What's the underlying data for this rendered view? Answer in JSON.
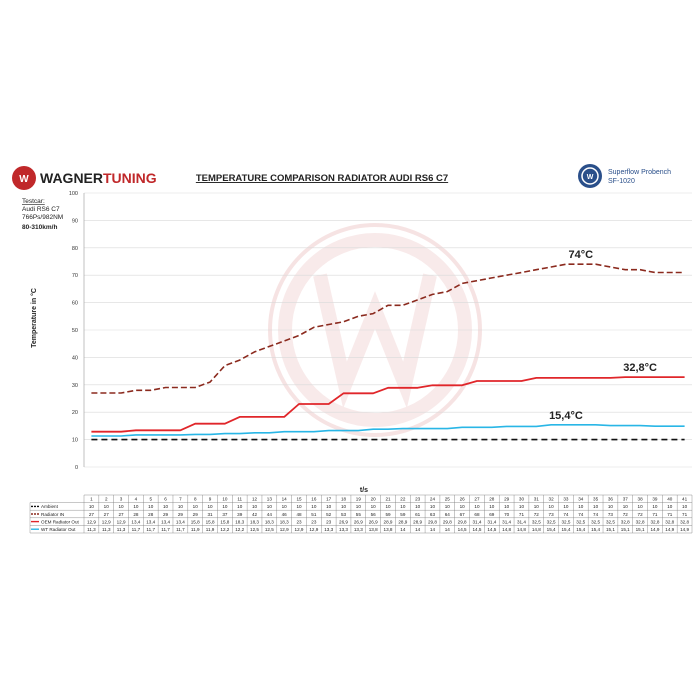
{
  "header": {
    "brand_part1": "WAGNER",
    "brand_part2": "TUNING",
    "title": "TEMPERATURE COMPARISON RADIATOR AUDI RS6 C7",
    "bench_line1": "Superflow Probench",
    "bench_line2": "SF-1020"
  },
  "testcar": {
    "label": "Testcar:",
    "model": "Audi RS6 C7",
    "power": "766Ps/982NM",
    "speed": "80-310km/h"
  },
  "chart_data": {
    "type": "line",
    "ylabel": "Temperature in °C",
    "xlabel": "t/s",
    "ylim": [
      0,
      100
    ],
    "yticks": [
      0,
      10,
      20,
      30,
      40,
      50,
      60,
      70,
      80,
      90,
      100
    ],
    "x": [
      1,
      2,
      3,
      4,
      5,
      6,
      7,
      8,
      9,
      10,
      11,
      12,
      13,
      14,
      15,
      16,
      17,
      18,
      19,
      20,
      21,
      22,
      23,
      24,
      25,
      26,
      27,
      28,
      29,
      30,
      31,
      32,
      33,
      34,
      35,
      36,
      37,
      38,
      39,
      40,
      41
    ],
    "series": [
      {
        "name": "Ambient",
        "color": "#111111",
        "style": "dashed",
        "values": [
          10,
          10,
          10,
          10,
          10,
          10,
          10,
          10,
          10,
          10,
          10,
          10,
          10,
          10,
          10,
          10,
          10,
          10,
          10,
          10,
          10,
          10,
          10,
          10,
          10,
          10,
          10,
          10,
          10,
          10,
          10,
          10,
          10,
          10,
          10,
          10,
          10,
          10,
          10,
          10,
          10
        ],
        "labels": [
          "10",
          "10",
          "10",
          "10",
          "10",
          "10",
          "10",
          "10",
          "10",
          "10",
          "10",
          "10",
          "10",
          "10",
          "10",
          "10",
          "10",
          "10",
          "10",
          "10",
          "10",
          "10",
          "10",
          "10",
          "10",
          "10",
          "10",
          "10",
          "10",
          "10",
          "10",
          "10",
          "10",
          "10",
          "10",
          "10",
          "10",
          "10",
          "10",
          "10",
          "10"
        ]
      },
      {
        "name": "Radiator IN",
        "color": "#8b2a1e",
        "style": "dashed",
        "values": [
          27,
          27,
          27,
          28,
          28,
          29,
          29,
          29,
          31,
          37,
          39,
          42,
          44,
          46,
          48,
          51,
          52,
          53,
          55,
          56,
          59,
          59,
          61,
          63,
          64,
          67,
          68,
          69,
          70,
          71,
          72,
          73,
          74,
          74,
          74,
          73,
          72,
          72,
          71,
          71,
          71
        ],
        "labels": [
          "27",
          "27",
          "27",
          "28",
          "28",
          "29",
          "29",
          "29",
          "31",
          "37",
          "39",
          "42",
          "44",
          "46",
          "48",
          "51",
          "52",
          "53",
          "55",
          "56",
          "59",
          "59",
          "61",
          "63",
          "64",
          "67",
          "68",
          "69",
          "70",
          "71",
          "72",
          "73",
          "74",
          "74",
          "74",
          "73",
          "72",
          "72",
          "71",
          "71",
          "71"
        ]
      },
      {
        "name": "OEM Radiator Out",
        "color": "#e0262a",
        "style": "solid",
        "values": [
          12.9,
          12.9,
          12.9,
          13.4,
          13.4,
          13.4,
          13.4,
          15.8,
          15.8,
          15.8,
          18.3,
          18.3,
          18.3,
          18.3,
          23,
          23,
          23,
          26.9,
          26.9,
          26.9,
          28.9,
          28.9,
          28.9,
          29.8,
          29.8,
          29.8,
          31.4,
          31.4,
          31.4,
          31.4,
          32.5,
          32.5,
          32.5,
          32.5,
          32.5,
          32.5,
          32.8,
          32.8,
          32.8,
          32.8,
          32.8
        ],
        "labels": [
          "12,9",
          "12,9",
          "12,9",
          "13,4",
          "13,4",
          "13,4",
          "13,4",
          "15,8",
          "15,8",
          "15,8",
          "18,3",
          "18,3",
          "18,3",
          "18,3",
          "23",
          "23",
          "23",
          "26,9",
          "26,9",
          "26,9",
          "28,9",
          "28,9",
          "28,9",
          "29,8",
          "29,8",
          "29,8",
          "31,4",
          "31,4",
          "31,4",
          "31,4",
          "32,5",
          "32,5",
          "32,5",
          "32,5",
          "32,5",
          "32,5",
          "32,8",
          "32,8",
          "32,8",
          "32,8",
          "32,8"
        ]
      },
      {
        "name": "WT Radiator Out",
        "color": "#29b6e6",
        "style": "solid",
        "values": [
          11.3,
          11.3,
          11.3,
          11.7,
          11.7,
          11.7,
          11.7,
          11.9,
          11.9,
          12.2,
          12.2,
          12.5,
          12.5,
          12.9,
          12.9,
          12.9,
          13.3,
          13.3,
          13.3,
          13.8,
          13.8,
          14,
          14,
          14,
          14,
          14.5,
          14.5,
          14.5,
          14.8,
          14.8,
          14.8,
          15.4,
          15.4,
          15.4,
          15.4,
          15.1,
          15.1,
          15.1,
          14.9,
          14.9,
          14.9
        ],
        "labels": [
          "11,3",
          "11,3",
          "11,3",
          "11,7",
          "11,7",
          "11,7",
          "11,7",
          "11,9",
          "11,9",
          "12,2",
          "12,2",
          "12,5",
          "12,5",
          "12,9",
          "12,9",
          "12,9",
          "13,3",
          "13,3",
          "13,3",
          "13,8",
          "13,8",
          "14",
          "14",
          "14",
          "14",
          "14,5",
          "14,5",
          "14,5",
          "14,8",
          "14,8",
          "14,8",
          "15,4",
          "15,4",
          "15,4",
          "15,4",
          "15,1",
          "15,1",
          "15,1",
          "14,9",
          "14,9",
          "14,9"
        ]
      }
    ],
    "annotations": [
      {
        "text": "74°C",
        "x": 34,
        "y": 74
      },
      {
        "text": "32,8°C",
        "x": 38,
        "y": 32.8
      },
      {
        "text": "15,4°C",
        "x": 33,
        "y": 15.4
      }
    ],
    "watermark_color": "#f3d9d9"
  }
}
